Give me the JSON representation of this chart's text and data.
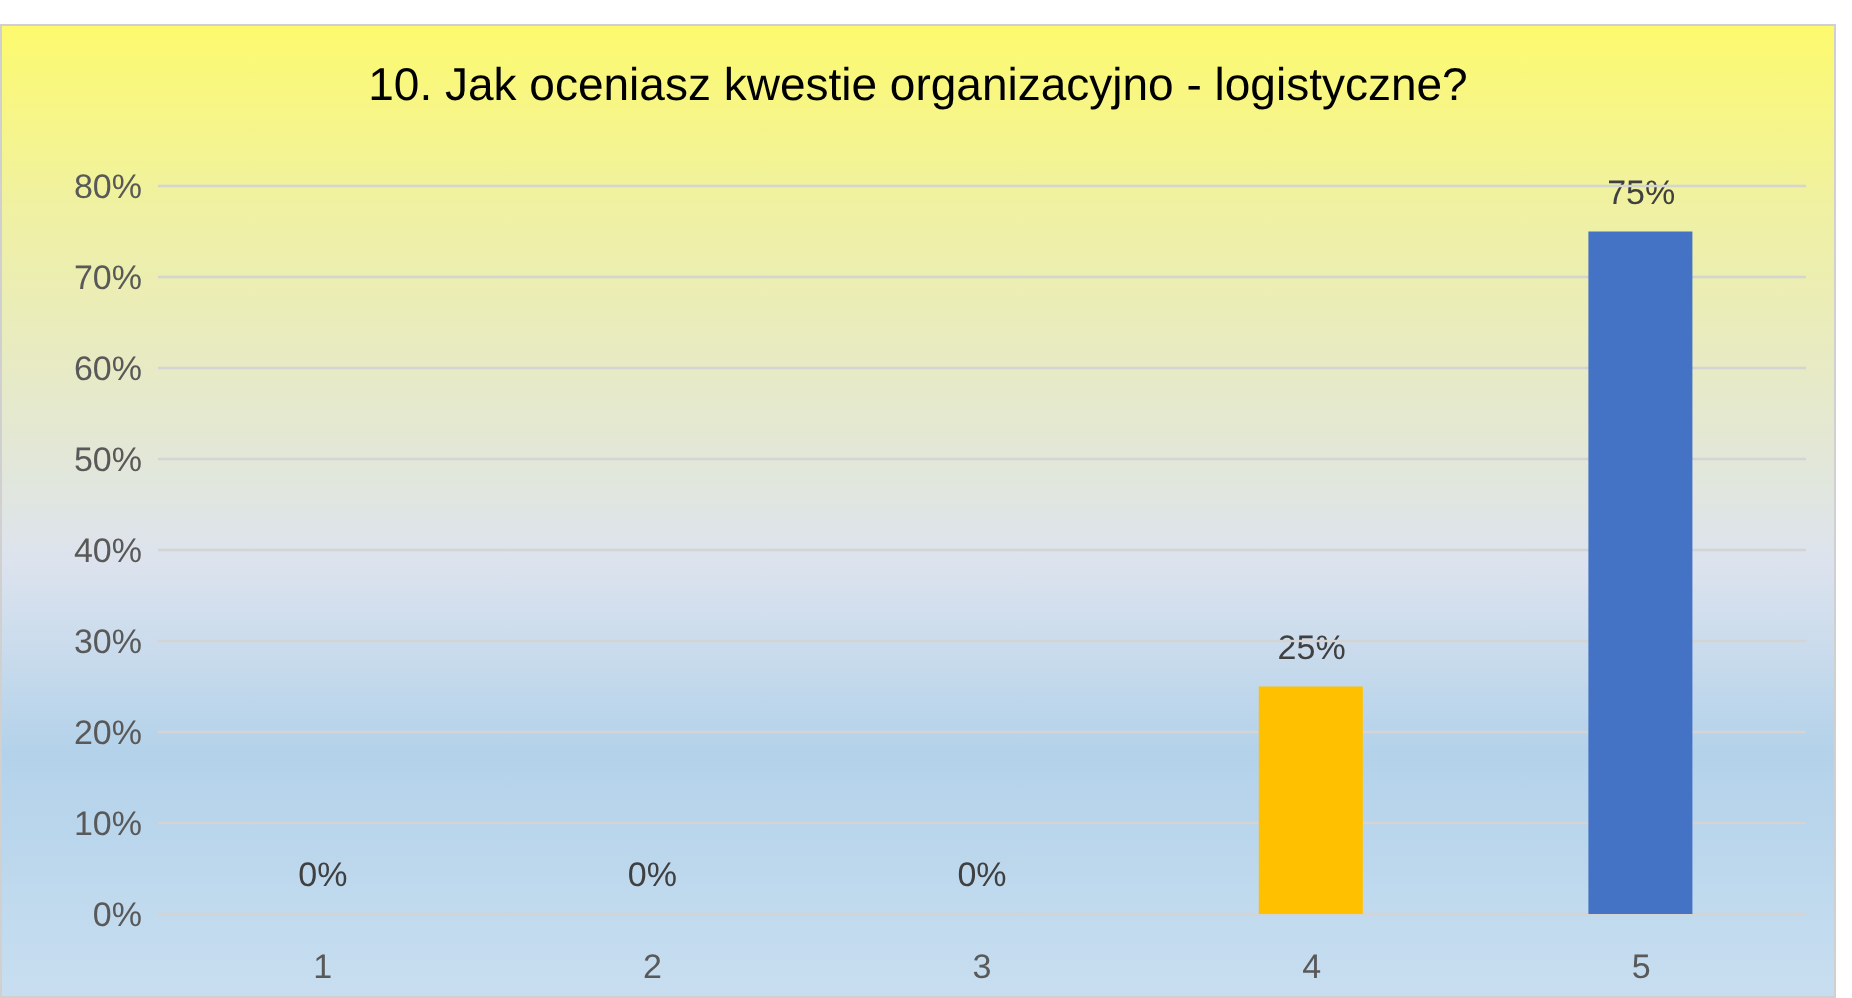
{
  "chart_data": {
    "type": "bar",
    "title": "10. Jak oceniasz kwestie organizacyjno - logistyczne?",
    "categories": [
      "1",
      "2",
      "3",
      "4",
      "5"
    ],
    "values": [
      0,
      0,
      0,
      25,
      75
    ],
    "colors": [
      "#4472c4",
      "#ed7d31",
      "#a5a5a5",
      "#ffc000",
      "#4472c4"
    ],
    "value_labels": [
      "0%",
      "0%",
      "0%",
      "25%",
      "75%"
    ],
    "ylim": [
      0,
      80
    ],
    "yticks": [
      {
        "value": 0,
        "label": "0%"
      },
      {
        "value": 10,
        "label": "10%"
      },
      {
        "value": 20,
        "label": "20%"
      },
      {
        "value": 30,
        "label": "30%"
      },
      {
        "value": 40,
        "label": "40%"
      },
      {
        "value": 50,
        "label": "50%"
      },
      {
        "value": 60,
        "label": "60%"
      },
      {
        "value": 70,
        "label": "70%"
      },
      {
        "value": 80,
        "label": "80%"
      }
    ],
    "grid": "y",
    "legend": false
  }
}
